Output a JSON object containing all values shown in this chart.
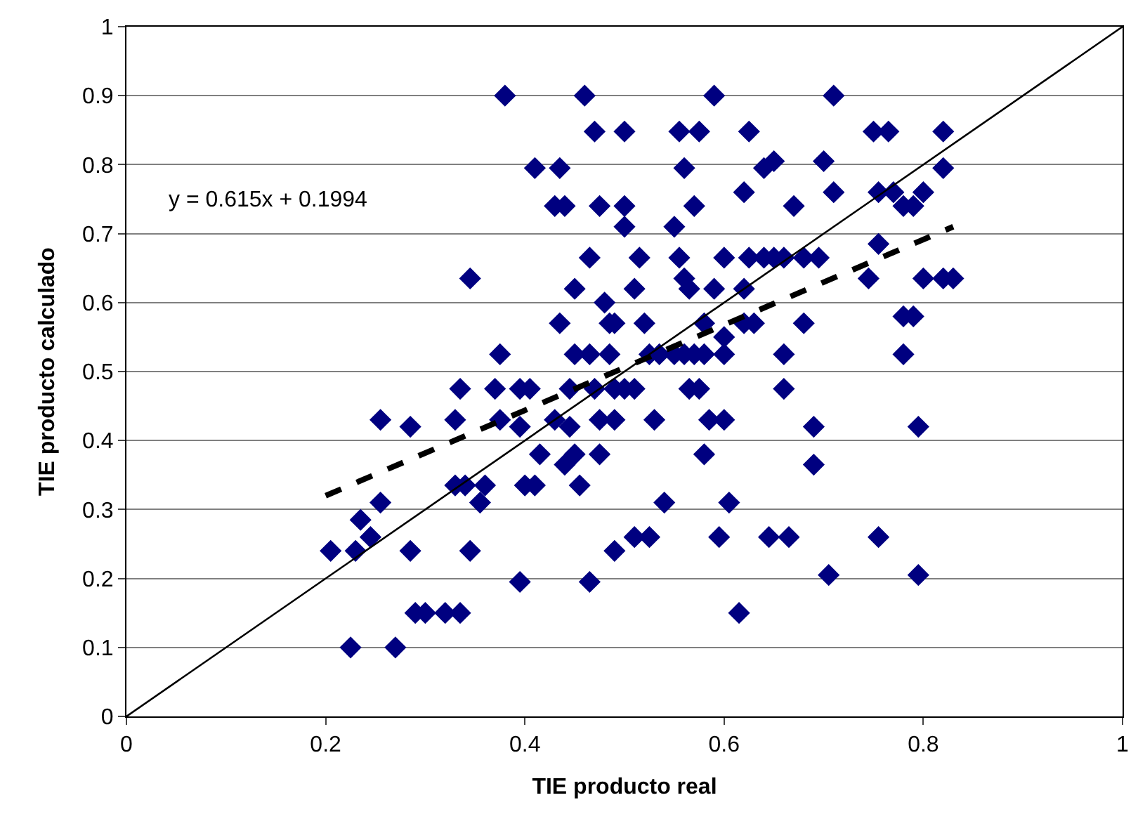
{
  "chart_data": {
    "type": "scatter",
    "xlabel": "TIE producto real",
    "ylabel": "TIE producto calculado",
    "xlim": [
      0,
      1
    ],
    "ylim": [
      0,
      1
    ],
    "xticks": [
      0,
      0.2,
      0.4,
      0.6,
      0.8,
      1
    ],
    "yticks": [
      0,
      0.1,
      0.2,
      0.3,
      0.4,
      0.5,
      0.6,
      0.7,
      0.8,
      0.9,
      1
    ],
    "grid": "y",
    "annotations": [
      "y = 0.615x + 0.1994"
    ],
    "series": [
      {
        "color": "#000080",
        "marker": "diamond",
        "x": [
          0.38,
          0.46,
          0.59,
          0.71,
          0.47,
          0.5,
          0.555,
          0.575,
          0.625,
          0.75,
          0.765,
          0.82,
          0.41,
          0.435,
          0.56,
          0.64,
          0.82,
          0.65,
          0.7,
          0.62,
          0.71,
          0.755,
          0.77,
          0.8,
          0.43,
          0.44,
          0.475,
          0.5,
          0.57,
          0.67,
          0.78,
          0.79,
          0.5,
          0.55,
          0.755,
          0.465,
          0.515,
          0.555,
          0.6,
          0.625,
          0.64,
          0.65,
          0.66,
          0.68,
          0.695,
          0.345,
          0.56,
          0.745,
          0.8,
          0.82,
          0.83,
          0.45,
          0.51,
          0.565,
          0.59,
          0.62,
          0.48,
          0.78,
          0.79,
          0.435,
          0.485,
          0.49,
          0.52,
          0.58,
          0.62,
          0.63,
          0.68,
          0.6,
          0.375,
          0.45,
          0.465,
          0.485,
          0.525,
          0.535,
          0.55,
          0.56,
          0.57,
          0.58,
          0.6,
          0.66,
          0.78,
          0.335,
          0.37,
          0.395,
          0.405,
          0.445,
          0.47,
          0.49,
          0.5,
          0.51,
          0.565,
          0.575,
          0.66,
          0.255,
          0.33,
          0.375,
          0.43,
          0.475,
          0.49,
          0.53,
          0.585,
          0.6,
          0.285,
          0.395,
          0.445,
          0.69,
          0.795,
          0.415,
          0.45,
          0.475,
          0.58,
          0.44,
          0.69,
          0.33,
          0.34,
          0.36,
          0.4,
          0.41,
          0.455,
          0.255,
          0.355,
          0.54,
          0.605,
          0.235,
          0.245,
          0.51,
          0.525,
          0.595,
          0.645,
          0.665,
          0.755,
          0.205,
          0.23,
          0.285,
          0.345,
          0.49,
          0.705,
          0.795,
          0.395,
          0.465,
          0.29,
          0.3,
          0.32,
          0.335,
          0.615,
          0.225,
          0.27
        ],
        "values": [
          0.9,
          0.9,
          0.9,
          0.9,
          0.848,
          0.848,
          0.848,
          0.848,
          0.848,
          0.848,
          0.848,
          0.848,
          0.795,
          0.795,
          0.795,
          0.795,
          0.795,
          0.805,
          0.805,
          0.76,
          0.76,
          0.76,
          0.76,
          0.76,
          0.74,
          0.74,
          0.74,
          0.74,
          0.74,
          0.74,
          0.74,
          0.74,
          0.71,
          0.71,
          0.685,
          0.665,
          0.665,
          0.665,
          0.665,
          0.665,
          0.665,
          0.665,
          0.665,
          0.665,
          0.665,
          0.635,
          0.635,
          0.635,
          0.635,
          0.635,
          0.635,
          0.62,
          0.62,
          0.62,
          0.62,
          0.62,
          0.6,
          0.58,
          0.58,
          0.57,
          0.57,
          0.57,
          0.57,
          0.57,
          0.57,
          0.57,
          0.57,
          0.55,
          0.525,
          0.525,
          0.525,
          0.525,
          0.525,
          0.525,
          0.525,
          0.525,
          0.525,
          0.525,
          0.525,
          0.525,
          0.525,
          0.475,
          0.475,
          0.475,
          0.475,
          0.475,
          0.475,
          0.475,
          0.475,
          0.475,
          0.475,
          0.475,
          0.475,
          0.43,
          0.43,
          0.43,
          0.43,
          0.43,
          0.43,
          0.43,
          0.43,
          0.43,
          0.42,
          0.42,
          0.42,
          0.42,
          0.42,
          0.38,
          0.38,
          0.38,
          0.38,
          0.365,
          0.365,
          0.335,
          0.335,
          0.335,
          0.335,
          0.335,
          0.335,
          0.31,
          0.31,
          0.31,
          0.31,
          0.285,
          0.26,
          0.26,
          0.26,
          0.26,
          0.26,
          0.26,
          0.26,
          0.24,
          0.24,
          0.24,
          0.24,
          0.24,
          0.205,
          0.205,
          0.195,
          0.195,
          0.15,
          0.15,
          0.15,
          0.15,
          0.15,
          0.1,
          0.1
        ]
      },
      {
        "type": "line",
        "color": "#000000",
        "line_style": "dashed",
        "marker": "none",
        "x": [
          0.2,
          0.83
        ],
        "values": [
          0.32,
          0.71
        ]
      },
      {
        "type": "line",
        "color": "#000000",
        "line_style": "solid",
        "marker": "none",
        "x": [
          0,
          1
        ],
        "values": [
          0,
          1
        ]
      }
    ]
  }
}
